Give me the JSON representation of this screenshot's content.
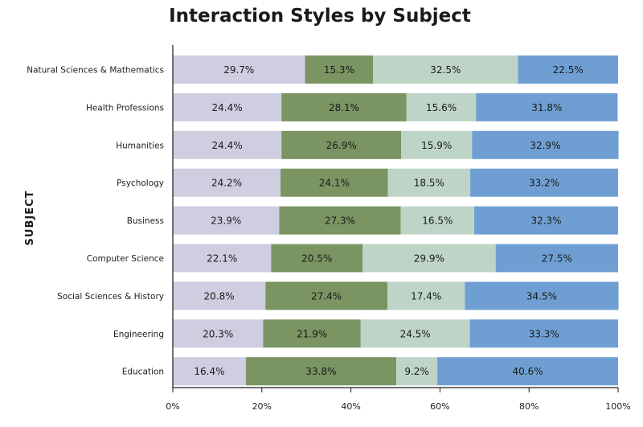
{
  "chart_data": {
    "type": "bar",
    "orientation": "horizontal",
    "stacked": true,
    "normalized": true,
    "title": "Interaction Styles by Subject",
    "xlabel": "",
    "ylabel": "SUBJECT",
    "xlim": [
      0,
      100
    ],
    "x_ticks": [
      "0%",
      "20%",
      "40%",
      "60%",
      "80%",
      "100%"
    ],
    "x_tick_values": [
      0,
      20,
      40,
      60,
      80,
      100
    ],
    "grid": false,
    "legend": "none",
    "value_suffix": "%",
    "categories": [
      "Natural Sciences & Mathematics",
      "Health Professions",
      "Humanities",
      "Psychology",
      "Business",
      "Computer Science",
      "Social Sciences & History",
      "Engineering",
      "Education"
    ],
    "series": [
      {
        "color": "#cfcde0",
        "values": [
          29.7,
          24.4,
          24.4,
          24.2,
          23.9,
          22.1,
          20.8,
          20.3,
          16.4
        ]
      },
      {
        "color": "#7a9462",
        "values": [
          15.3,
          28.1,
          26.9,
          24.1,
          27.3,
          20.5,
          27.4,
          21.9,
          33.8
        ]
      },
      {
        "color": "#bed4c7",
        "values": [
          32.5,
          15.6,
          15.9,
          18.5,
          16.5,
          29.9,
          17.4,
          24.5,
          9.2
        ]
      },
      {
        "color": "#6f9fd2",
        "values": [
          22.5,
          31.8,
          32.9,
          33.2,
          32.3,
          27.5,
          34.5,
          33.3,
          40.6
        ]
      }
    ]
  }
}
